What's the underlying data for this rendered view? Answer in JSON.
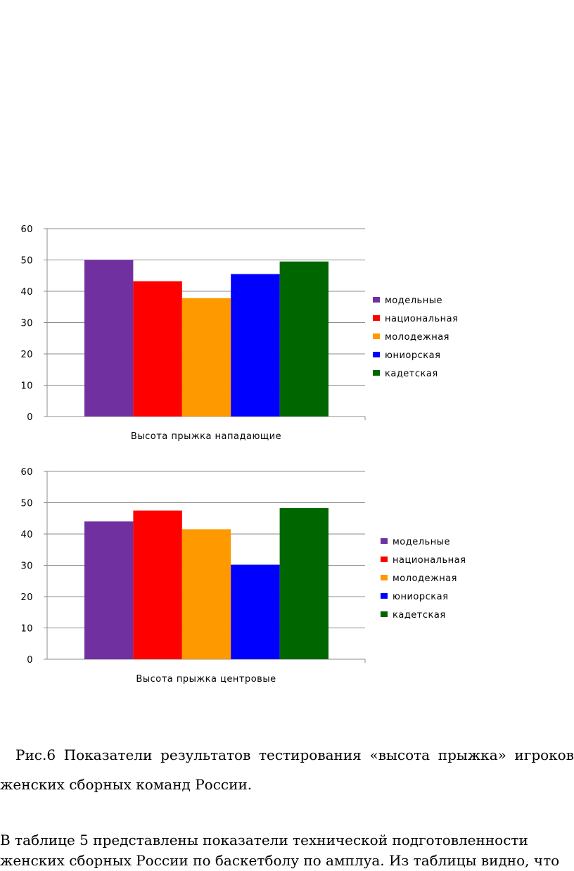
{
  "chart_data": [
    {
      "type": "bar",
      "categories": [
        "Высота прыжка  нападающие"
      ],
      "series": [
        {
          "name": "модельные",
          "values": [
            50
          ],
          "color": "#7030A0"
        },
        {
          "name": "национальная",
          "values": [
            43.2
          ],
          "color": "#FF0000"
        },
        {
          "name": "молодежная",
          "values": [
            37.8
          ],
          "color": "#FF9900"
        },
        {
          "name": "юниорская",
          "values": [
            45.5
          ],
          "color": "#0000FF"
        },
        {
          "name": "кадетская",
          "values": [
            49.5
          ],
          "color": "#006600"
        }
      ],
      "yticks": [
        "0",
        "10",
        "20",
        "30",
        "40",
        "50",
        "60"
      ],
      "ylim": [
        0,
        60
      ],
      "grid": true,
      "legend": "right"
    },
    {
      "type": "bar",
      "categories": [
        "Высота прыжка  центровые"
      ],
      "series": [
        {
          "name": "модельные",
          "values": [
            44
          ],
          "color": "#7030A0"
        },
        {
          "name": "национальная",
          "values": [
            47.5
          ],
          "color": "#FF0000"
        },
        {
          "name": "молодежная",
          "values": [
            41.5
          ],
          "color": "#FF9900"
        },
        {
          "name": "юниорская",
          "values": [
            30.2
          ],
          "color": "#0000FF"
        },
        {
          "name": "кадетская",
          "values": [
            48.3
          ],
          "color": "#006600"
        }
      ],
      "yticks": [
        "0",
        "10",
        "20",
        "30",
        "40",
        "50",
        "60"
      ],
      "ylim": [
        0,
        60
      ],
      "grid": true,
      "legend": "right"
    }
  ],
  "caption": {
    "line1": "Рис.6 Показатели результатов тестирования «высота прыжка» игроков",
    "line2": "женских сборных команд России."
  },
  "paragraph": {
    "line1": "В таблице 5 представлены показатели технической подготовленности",
    "line2": "женских сборных России по баскетболу по амплуа. Из таблицы видно, что"
  }
}
